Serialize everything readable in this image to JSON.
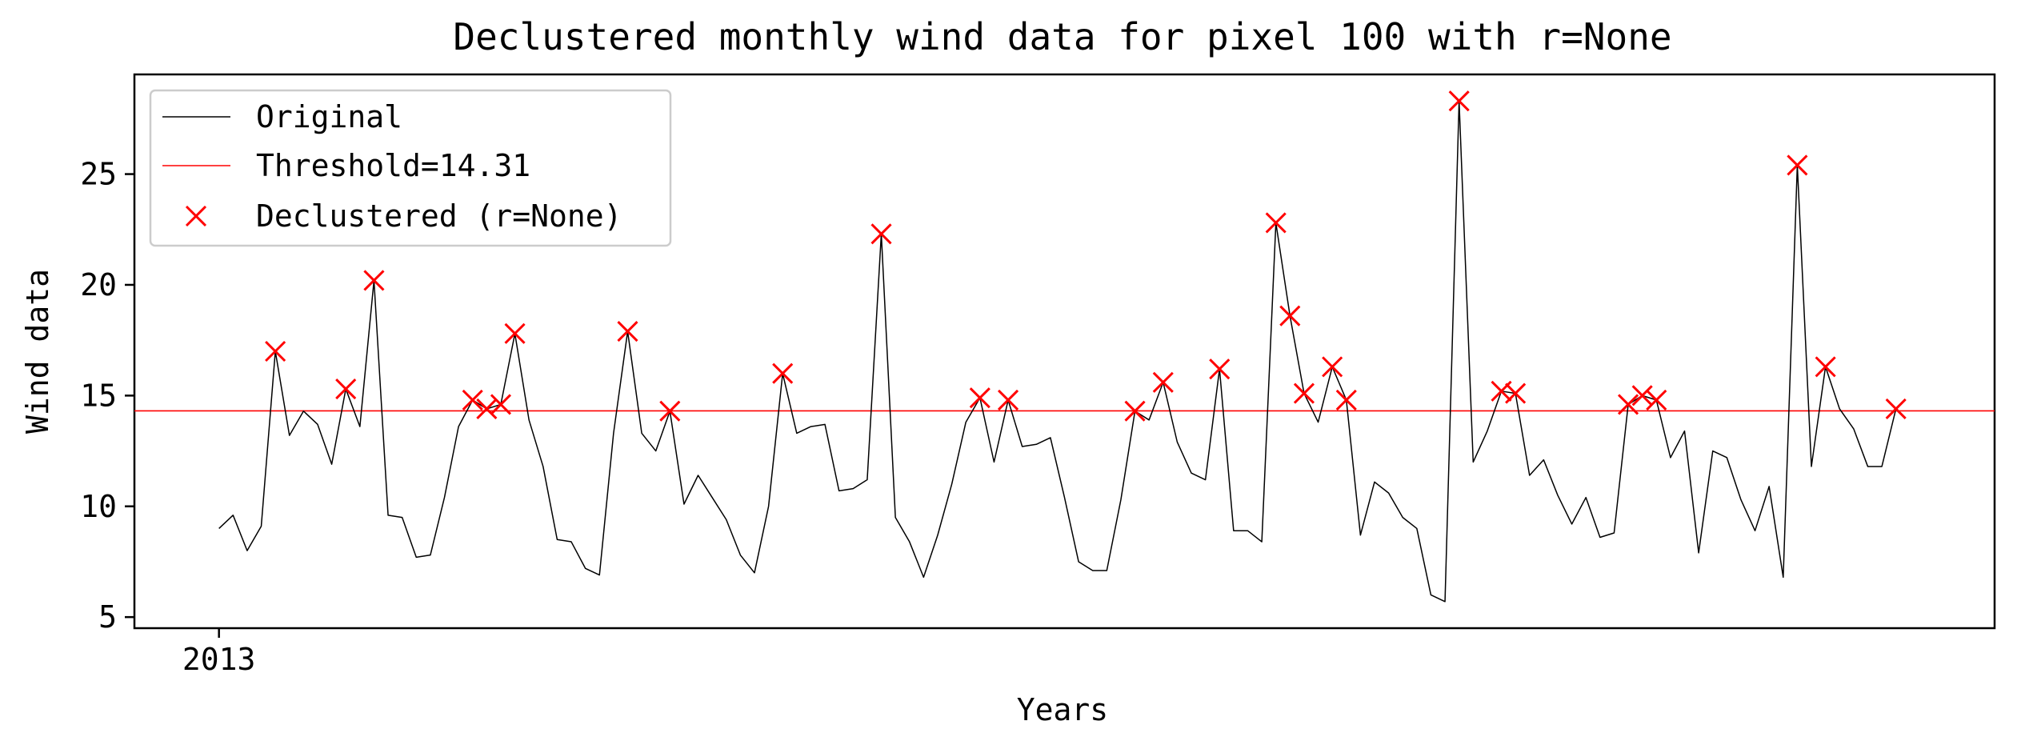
{
  "chart_data": {
    "type": "line",
    "title": "Declustered monthly wind data for pixel 100 with r=None",
    "xlabel": "Years",
    "ylabel": "Wind data",
    "xlim": [
      -6,
      126
    ],
    "ylim": [
      4.5,
      29.5
    ],
    "yticks": [
      5,
      10,
      15,
      20,
      25
    ],
    "xticks": [
      {
        "x": 0,
        "label": "2013"
      }
    ],
    "legend": "upper-left",
    "grid": false,
    "colors": {
      "line": "#000000",
      "threshold": "#ff0000",
      "marker": "#ff0000"
    },
    "legend_entries": {
      "original": "Original",
      "threshold": "Threshold=14.31",
      "declustered": "Declustered (r=None)"
    },
    "threshold": 14.31,
    "series": [
      {
        "name": "Original",
        "values": [
          9.0,
          9.6,
          8.0,
          9.1,
          17.0,
          13.2,
          14.3,
          13.7,
          11.9,
          15.3,
          13.6,
          20.2,
          9.6,
          9.5,
          7.7,
          7.8,
          10.4,
          13.6,
          14.8,
          14.4,
          14.6,
          17.8,
          13.9,
          11.8,
          8.5,
          8.4,
          7.2,
          6.9,
          13.3,
          17.9,
          13.3,
          12.5,
          14.3,
          10.1,
          11.4,
          10.4,
          9.4,
          7.8,
          7.0,
          10.0,
          16.0,
          13.3,
          13.6,
          13.7,
          10.7,
          10.8,
          11.2,
          22.3,
          9.5,
          8.4,
          6.8,
          8.7,
          11.0,
          13.8,
          14.9,
          12.0,
          14.8,
          12.7,
          12.8,
          13.1,
          10.4,
          7.5,
          7.1,
          7.1,
          10.3,
          14.3,
          13.9,
          15.6,
          12.9,
          11.5,
          11.2,
          16.2,
          8.9,
          8.9,
          8.4,
          22.8,
          18.6,
          15.1,
          13.8,
          16.3,
          14.8,
          8.7,
          11.1,
          10.6,
          9.5,
          9.0,
          6.0,
          5.7,
          28.3,
          12.0,
          13.4,
          15.2,
          15.1,
          11.4,
          12.1,
          10.5,
          9.2,
          10.4,
          8.6,
          8.8,
          14.6,
          15.0,
          14.8,
          12.2,
          13.4,
          7.9,
          12.5,
          12.2,
          10.3,
          8.9,
          10.9,
          6.8,
          25.4,
          11.8,
          16.3,
          14.4,
          13.5,
          11.8,
          11.8,
          14.4
        ]
      },
      {
        "name": "Declustered (r=None)",
        "points": [
          [
            4,
            17.0
          ],
          [
            9,
            15.3
          ],
          [
            11,
            20.2
          ],
          [
            18,
            14.8
          ],
          [
            19,
            14.4
          ],
          [
            20,
            14.6
          ],
          [
            21,
            17.8
          ],
          [
            29,
            17.9
          ],
          [
            32,
            14.3
          ],
          [
            40,
            16.0
          ],
          [
            47,
            22.3
          ],
          [
            54,
            14.9
          ],
          [
            56,
            14.8
          ],
          [
            65,
            14.3
          ],
          [
            67,
            15.6
          ],
          [
            71,
            16.2
          ],
          [
            75,
            22.8
          ],
          [
            76,
            18.6
          ],
          [
            77,
            15.1
          ],
          [
            79,
            16.3
          ],
          [
            80,
            14.8
          ],
          [
            88,
            28.3
          ],
          [
            91,
            15.2
          ],
          [
            92,
            15.1
          ],
          [
            100,
            14.6
          ],
          [
            101,
            15.0
          ],
          [
            102,
            14.8
          ],
          [
            112,
            25.4
          ],
          [
            114,
            16.3
          ],
          [
            119,
            14.4
          ]
        ]
      }
    ]
  }
}
